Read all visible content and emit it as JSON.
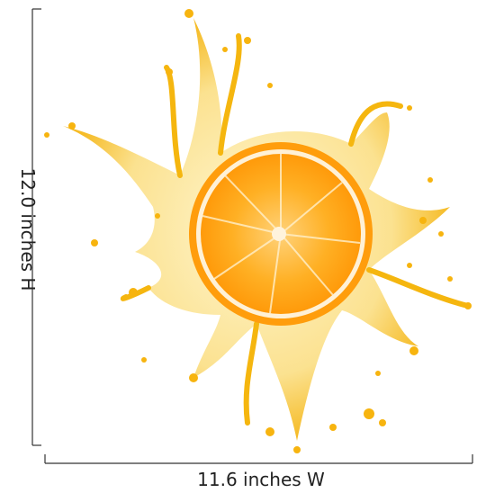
{
  "dimensions": {
    "height_label": "12.0 inches H",
    "width_label": "11.6 inches W"
  }
}
